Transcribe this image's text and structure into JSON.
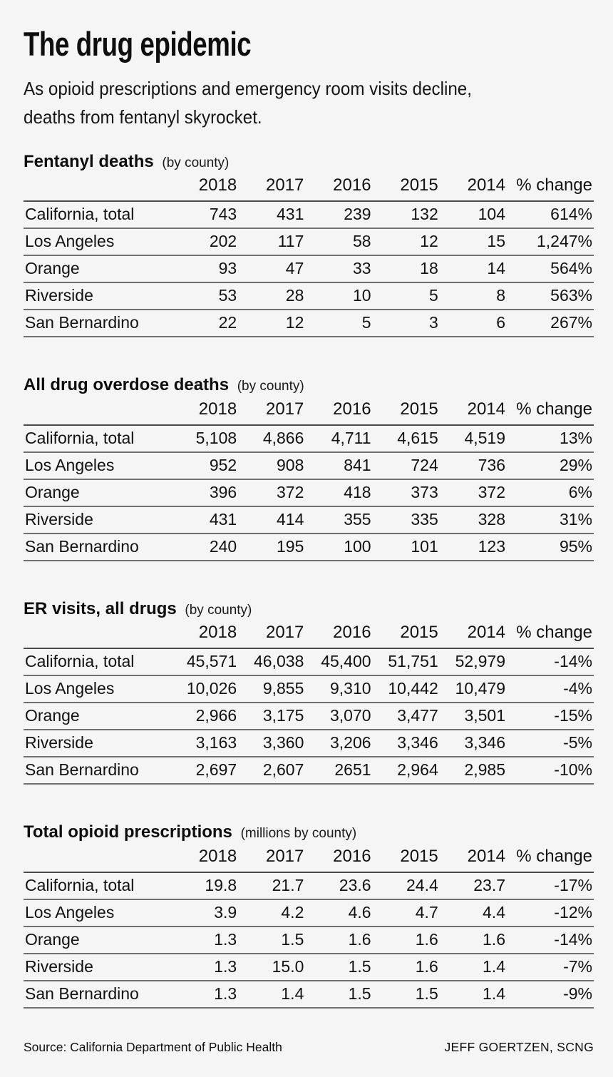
{
  "page": {
    "title": "The drug epidemic",
    "subtitle": "As opioid prescriptions and emergency room visits decline, deaths from fentanyl skyrocket.",
    "footer": {
      "source": "Source: California Department of Public Health",
      "credit": "JEFF GOERTZEN, SCNG"
    },
    "colors": {
      "background": "#f5f5f6",
      "text": "#121212",
      "header_rule": "#4a4a4a",
      "row_rule": "#707070"
    }
  },
  "chart_data": [
    {
      "type": "table",
      "title": "Fentanyl deaths",
      "note": "(by county)",
      "columns": [
        "2018",
        "2017",
        "2016",
        "2015",
        "2014",
        "% change"
      ],
      "rows": [
        {
          "label": "California, total",
          "values": [
            "743",
            "431",
            "239",
            "132",
            "104",
            "614%"
          ]
        },
        {
          "label": "Los Angeles",
          "values": [
            "202",
            "117",
            "58",
            "12",
            "15",
            "1,247%"
          ]
        },
        {
          "label": "Orange",
          "values": [
            "93",
            "47",
            "33",
            "18",
            "14",
            "564%"
          ]
        },
        {
          "label": "Riverside",
          "values": [
            "53",
            "28",
            "10",
            "5",
            "8",
            "563%"
          ]
        },
        {
          "label": "San Bernardino",
          "values": [
            "22",
            "12",
            "5",
            "3",
            "6",
            "267%"
          ]
        }
      ]
    },
    {
      "type": "table",
      "title": "All drug overdose deaths",
      "note": "(by county)",
      "columns": [
        "2018",
        "2017",
        "2016",
        "2015",
        "2014",
        "% change"
      ],
      "rows": [
        {
          "label": "California, total",
          "values": [
            "5,108",
            "4,866",
            "4,711",
            "4,615",
            "4,519",
            "13%"
          ]
        },
        {
          "label": "Los Angeles",
          "values": [
            "952",
            "908",
            "841",
            "724",
            "736",
            "29%"
          ]
        },
        {
          "label": "Orange",
          "values": [
            "396",
            "372",
            "418",
            "373",
            "372",
            "6%"
          ]
        },
        {
          "label": "Riverside",
          "values": [
            "431",
            "414",
            "355",
            "335",
            "328",
            "31%"
          ]
        },
        {
          "label": "San Bernardino",
          "values": [
            "240",
            "195",
            "100",
            "101",
            "123",
            "95%"
          ]
        }
      ]
    },
    {
      "type": "table",
      "title": "ER visits, all drugs",
      "note": "(by county)",
      "columns": [
        "2018",
        "2017",
        "2016",
        "2015",
        "2014",
        "% change"
      ],
      "rows": [
        {
          "label": "California, total",
          "values": [
            "45,571",
            "46,038",
            "45,400",
            "51,751",
            "52,979",
            "-14%"
          ]
        },
        {
          "label": "Los Angeles",
          "values": [
            "10,026",
            "9,855",
            "9,310",
            "10,442",
            "10,479",
            "-4%"
          ]
        },
        {
          "label": "Orange",
          "values": [
            "2,966",
            "3,175",
            "3,070",
            "3,477",
            "3,501",
            "-15%"
          ]
        },
        {
          "label": "Riverside",
          "values": [
            "3,163",
            "3,360",
            "3,206",
            "3,346",
            "3,346",
            "-5%"
          ]
        },
        {
          "label": "San Bernardino",
          "values": [
            "2,697",
            "2,607",
            "2651",
            "2,964",
            "2,985",
            "-10%"
          ]
        }
      ]
    },
    {
      "type": "table",
      "title": "Total opioid prescriptions",
      "note": "(millions by county)",
      "columns": [
        "2018",
        "2017",
        "2016",
        "2015",
        "2014",
        "% change"
      ],
      "rows": [
        {
          "label": "California, total",
          "values": [
            "19.8",
            "21.7",
            "23.6",
            "24.4",
            "23.7",
            "-17%"
          ]
        },
        {
          "label": "Los Angeles",
          "values": [
            "3.9",
            "4.2",
            "4.6",
            "4.7",
            "4.4",
            "-12%"
          ]
        },
        {
          "label": "Orange",
          "values": [
            "1.3",
            "1.5",
            "1.6",
            "1.6",
            "1.6",
            "-14%"
          ]
        },
        {
          "label": "Riverside",
          "values": [
            "1.3",
            "15.0",
            "1.5",
            "1.6",
            "1.4",
            "-7%"
          ]
        },
        {
          "label": "San Bernardino",
          "values": [
            "1.3",
            "1.4",
            "1.5",
            "1.5",
            "1.4",
            "-9%"
          ]
        }
      ]
    }
  ]
}
